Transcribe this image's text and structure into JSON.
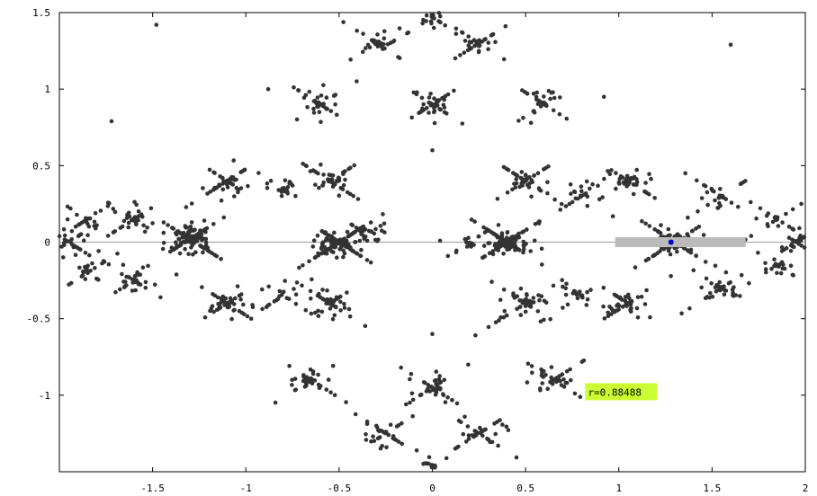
{
  "chart_data": {
    "type": "scatter",
    "xlim": [
      -2,
      2
    ],
    "ylim": [
      -1.5,
      1.5
    ],
    "x_ticks": [
      {
        "value": -1.5,
        "label": "-1.5"
      },
      {
        "value": -1,
        "label": "-1"
      },
      {
        "value": -0.5,
        "label": "-0.5"
      },
      {
        "value": 0,
        "label": "0"
      },
      {
        "value": 0.5,
        "label": "0.5"
      },
      {
        "value": 1,
        "label": "1"
      },
      {
        "value": 1.5,
        "label": "1.5"
      },
      {
        "value": 2,
        "label": "2"
      }
    ],
    "y_ticks": [
      {
        "value": 1.5,
        "label": "1.5"
      },
      {
        "value": 1,
        "label": "1"
      },
      {
        "value": 0.5,
        "label": "0.5"
      },
      {
        "value": 0,
        "label": "0"
      },
      {
        "value": -0.5,
        "label": "-0.5"
      },
      {
        "value": -1,
        "label": "-1"
      }
    ],
    "grid": false,
    "zero_line": true,
    "slider_range": [
      0.98,
      1.68
    ],
    "slider_value": 1.28,
    "point_color": "#333333",
    "marker_color": "#0000cc",
    "slider_color": "#bbbbbb",
    "annotation": {
      "text": "r=0.88488",
      "background": "#ccff33",
      "x": 0.82,
      "y": -0.98
    },
    "point_clusters": [
      {
        "cx": -1.3,
        "cy": 0.02,
        "count": 150
      },
      {
        "cx": -0.5,
        "cy": 0.0,
        "count": 160
      },
      {
        "cx": 0.4,
        "cy": 0.0,
        "count": 160
      },
      {
        "cx": 1.3,
        "cy": 0.0,
        "count": 130
      },
      {
        "cx": -1.95,
        "cy": 0.0,
        "count": 35
      },
      {
        "cx": 1.95,
        "cy": 0.0,
        "count": 35
      },
      {
        "cx": -1.6,
        "cy": 0.15,
        "count": 40
      },
      {
        "cx": -1.6,
        "cy": -0.25,
        "count": 40
      },
      {
        "cx": -1.85,
        "cy": 0.15,
        "count": 25
      },
      {
        "cx": -1.85,
        "cy": -0.2,
        "count": 25
      },
      {
        "cx": -1.1,
        "cy": 0.4,
        "count": 55
      },
      {
        "cx": -1.1,
        "cy": -0.4,
        "count": 55
      },
      {
        "cx": -0.55,
        "cy": 0.4,
        "count": 55
      },
      {
        "cx": -0.55,
        "cy": -0.4,
        "count": 55
      },
      {
        "cx": 0.5,
        "cy": 0.4,
        "count": 55
      },
      {
        "cx": 0.5,
        "cy": -0.4,
        "count": 55
      },
      {
        "cx": 1.05,
        "cy": 0.4,
        "count": 55
      },
      {
        "cx": 1.05,
        "cy": -0.4,
        "count": 55
      },
      {
        "cx": 1.55,
        "cy": 0.3,
        "count": 40
      },
      {
        "cx": 1.55,
        "cy": -0.3,
        "count": 40
      },
      {
        "cx": 1.85,
        "cy": 0.15,
        "count": 25
      },
      {
        "cx": 1.85,
        "cy": -0.15,
        "count": 25
      },
      {
        "cx": -0.8,
        "cy": 0.35,
        "count": 25
      },
      {
        "cx": -0.8,
        "cy": -0.35,
        "count": 25
      },
      {
        "cx": 0.8,
        "cy": 0.3,
        "count": 25
      },
      {
        "cx": 0.8,
        "cy": -0.35,
        "count": 25
      },
      {
        "cx": 0.0,
        "cy": 0.9,
        "count": 50
      },
      {
        "cx": 0.0,
        "cy": -0.95,
        "count": 50
      },
      {
        "cx": -0.3,
        "cy": 1.3,
        "count": 40
      },
      {
        "cx": 0.25,
        "cy": 1.3,
        "count": 40
      },
      {
        "cx": -0.25,
        "cy": -1.25,
        "count": 40
      },
      {
        "cx": 0.25,
        "cy": -1.25,
        "count": 40
      },
      {
        "cx": -0.6,
        "cy": 0.9,
        "count": 40
      },
      {
        "cx": 0.6,
        "cy": 0.9,
        "count": 40
      },
      {
        "cx": -0.65,
        "cy": -0.9,
        "count": 40
      },
      {
        "cx": 0.65,
        "cy": -0.9,
        "count": 40
      },
      {
        "cx": 0.0,
        "cy": 1.47,
        "count": 25
      },
      {
        "cx": 0.0,
        "cy": -1.47,
        "count": 25
      },
      {
        "cx": -0.35,
        "cy": 0.05,
        "count": 30
      },
      {
        "cx": 0.2,
        "cy": 0.0,
        "count": 20
      }
    ],
    "isolated_points": [
      {
        "x": -1.48,
        "y": 1.42
      },
      {
        "x": 1.6,
        "y": 1.29
      },
      {
        "x": -1.72,
        "y": 0.79
      },
      {
        "x": 0.0,
        "y": 0.6
      },
      {
        "x": 0.0,
        "y": -0.6
      },
      {
        "x": -0.88,
        "y": 1.0
      },
      {
        "x": 0.92,
        "y": 0.95
      }
    ]
  }
}
